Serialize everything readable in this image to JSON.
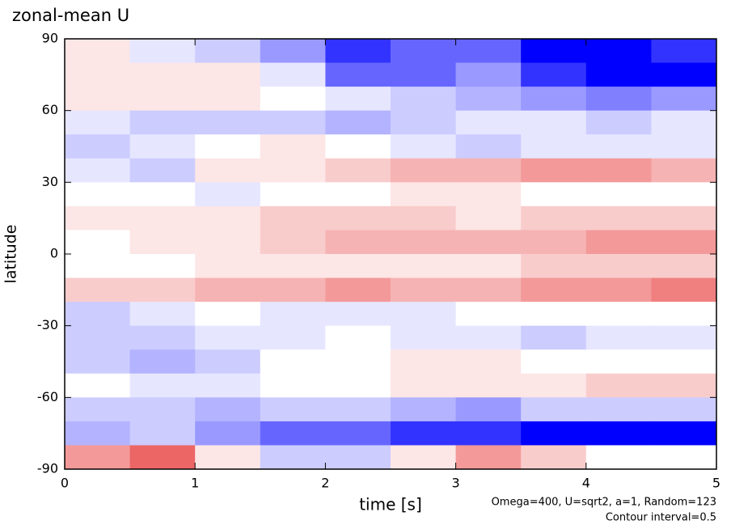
{
  "chart_data": {
    "type": "contour",
    "title": "zonal-mean U",
    "x_label": "time [s]",
    "y_label": "latitude",
    "notes": [
      "Omega=400, U=sqrt2, a=1, Random=123",
      "Contour interval=0.5"
    ],
    "xlim": [
      0,
      5
    ],
    "ylim": [
      -90,
      90
    ],
    "xticks": [
      0,
      1,
      2,
      3,
      4,
      5
    ],
    "yticks": [
      -90,
      -60,
      -30,
      0,
      30,
      60,
      90
    ],
    "negative_color": "#0000ff",
    "positive_color": "#e00000",
    "x": [
      0.25,
      0.75,
      1.25,
      1.75,
      2.25,
      2.75,
      3.25,
      3.75,
      4.25,
      4.75
    ],
    "y": [
      85,
      75,
      65,
      55,
      45,
      35,
      25,
      15,
      5,
      -5,
      -15,
      -25,
      -35,
      -45,
      -55,
      -65,
      -75,
      -85
    ],
    "z": [
      [
        0.5,
        -0.5,
        -1,
        -2,
        -4,
        -3,
        -3,
        -5,
        -5,
        -4
      ],
      [
        0.5,
        0.5,
        0.5,
        -0.5,
        -3,
        -3,
        -2,
        -4,
        -5,
        -5
      ],
      [
        0.5,
        0.5,
        0.5,
        0,
        -0.5,
        -1,
        -1.5,
        -2,
        -2.5,
        -2
      ],
      [
        -0.5,
        -1,
        -1,
        -1,
        -1.5,
        -1,
        -0.5,
        -0.5,
        -1,
        -0.5
      ],
      [
        -1,
        -0.5,
        0,
        0.5,
        0,
        -0.5,
        -1,
        -0.5,
        -0.5,
        -0.5
      ],
      [
        -0.5,
        -1,
        0.5,
        0.5,
        1,
        1.5,
        1.5,
        2,
        2,
        1.5
      ],
      [
        0,
        0,
        -0.5,
        0,
        0,
        0.5,
        0.5,
        0,
        0,
        0
      ],
      [
        0.5,
        0.5,
        0.5,
        1,
        1,
        1,
        0.5,
        1,
        1,
        1
      ],
      [
        0,
        0.5,
        0.5,
        1,
        1.5,
        1.5,
        1.5,
        1.5,
        2,
        2
      ],
      [
        0,
        0,
        0.5,
        0.5,
        0.5,
        0.5,
        0.5,
        1,
        1,
        1
      ],
      [
        1,
        1,
        1.5,
        1.5,
        2,
        1.5,
        1.5,
        2,
        2,
        2.5
      ],
      [
        -1,
        -0.5,
        0,
        -0.5,
        -0.5,
        -0.5,
        0,
        0,
        0,
        0
      ],
      [
        -1,
        -1,
        -0.5,
        -0.5,
        0,
        -0.5,
        -0.5,
        -1,
        -0.5,
        -0.5
      ],
      [
        -1,
        -1.5,
        -1,
        0,
        0,
        0.5,
        0.5,
        0,
        0,
        0
      ],
      [
        0,
        -0.5,
        -0.5,
        0,
        0,
        0.5,
        0.5,
        0.5,
        1,
        1
      ],
      [
        -1,
        -1,
        -1.5,
        -1,
        -1,
        -1.5,
        -2,
        -1,
        -1,
        -1
      ],
      [
        -1.5,
        -1,
        -2,
        -3,
        -3,
        -4,
        -4,
        -5,
        -5,
        -5
      ],
      [
        2,
        3,
        0.5,
        -1,
        -1,
        0.5,
        2,
        1,
        0,
        0
      ]
    ]
  }
}
